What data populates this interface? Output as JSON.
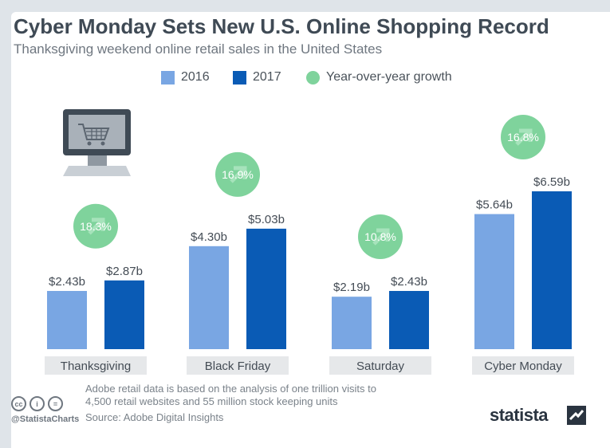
{
  "header": {
    "title": "Cyber Monday Sets New U.S. Online Shopping Record",
    "subtitle": "Thanksgiving weekend online retail sales in the United States"
  },
  "legend": {
    "series_a": "2016",
    "series_b": "2017",
    "growth": "Year-over-year growth"
  },
  "colors": {
    "series_2016": "#79a6e3",
    "series_2017": "#0a5bb5",
    "growth": "#7fd39c",
    "category_bg": "#e6e8ea",
    "label": "#444c55"
  },
  "chart_data": {
    "type": "bar",
    "title": "Cyber Monday Sets New U.S. Online Shopping Record",
    "subtitle": "Thanksgiving weekend online retail sales in the United States",
    "categories": [
      "Thanksgiving",
      "Black Friday",
      "Saturday",
      "Cyber Monday"
    ],
    "series": [
      {
        "name": "2016",
        "values": [
          2.43,
          4.3,
          2.19,
          5.64
        ],
        "labels": [
          "$2.43b",
          "$4.30b",
          "$2.19b",
          "$5.64b"
        ]
      },
      {
        "name": "2017",
        "values": [
          2.87,
          5.03,
          2.43,
          6.59
        ],
        "labels": [
          "$2.87b",
          "$5.03b",
          "$2.43b",
          "$6.59b"
        ]
      }
    ],
    "growth": {
      "name": "Year-over-year growth",
      "values": [
        18.3,
        16.9,
        10.8,
        16.8
      ],
      "labels": [
        "18.3%",
        "16.9%",
        "10.8%",
        "16.8%"
      ]
    },
    "ylim": [
      0,
      6.59
    ],
    "grid": false,
    "legend_position": "top"
  },
  "footer": {
    "note": "Adobe retail data is based on the analysis of one trillion visits to 4,500 retail websites and 55 million stock keeping units",
    "source": "Source: Adobe Digital Insights",
    "handle": "@StatistaCharts",
    "license_icons": [
      "cc",
      "i",
      "="
    ],
    "brand": "statista"
  },
  "icons": {
    "illustration": "computer-shopping-cart-icon",
    "growth_marker": "arrow-up-right-icon",
    "license": "creative-commons-icon"
  }
}
